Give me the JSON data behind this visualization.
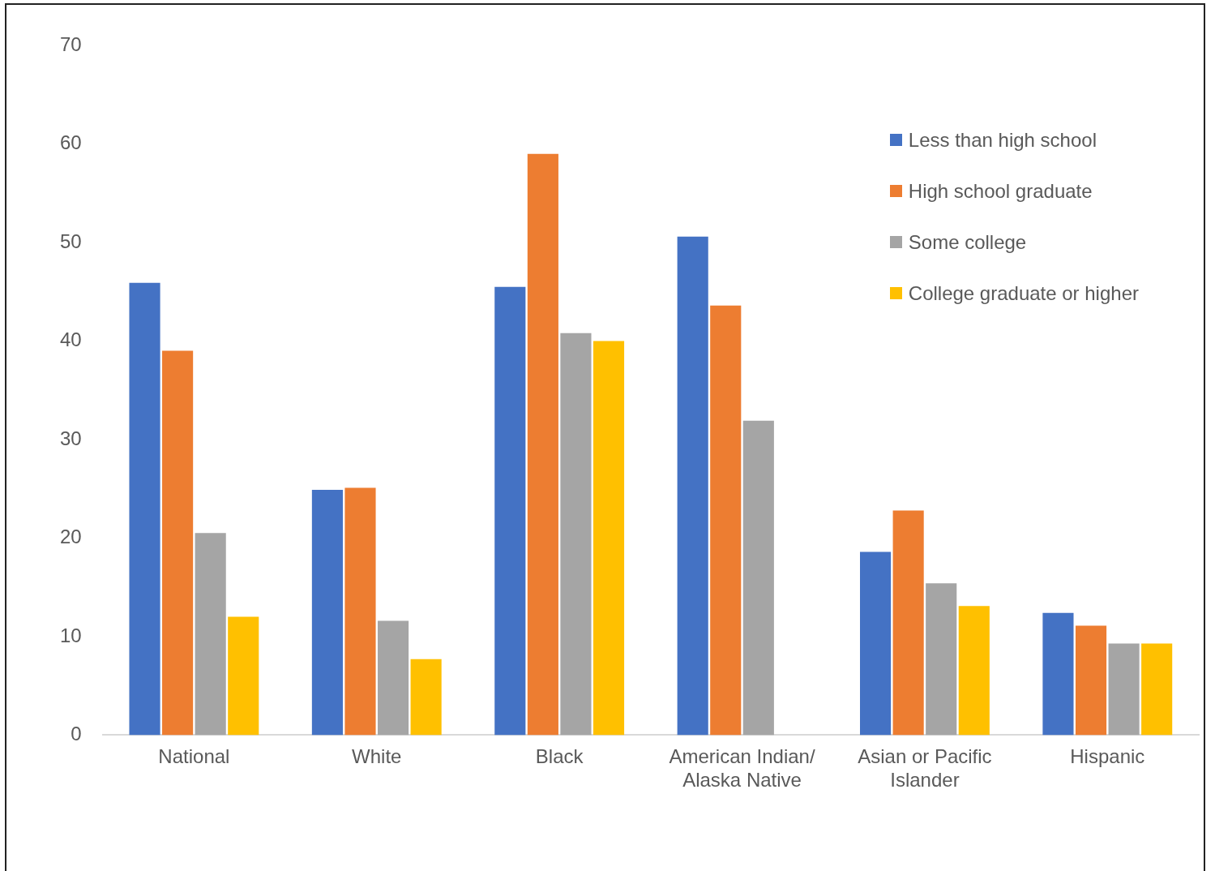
{
  "chart_data": {
    "type": "bar",
    "categories": [
      "National",
      "White",
      "Black",
      "American Indian/ Alaska Native",
      "Asian or Pacific Islander",
      "Hispanic"
    ],
    "series": [
      {
        "name": "Less than high school",
        "color": "#4472c4",
        "values": [
          45.9,
          24.9,
          45.5,
          50.6,
          18.6,
          12.4
        ]
      },
      {
        "name": "High school graduate",
        "color": "#ed7d31",
        "values": [
          39.0,
          25.1,
          59.0,
          43.6,
          22.8,
          11.1
        ]
      },
      {
        "name": "Some college",
        "color": "#a5a5a5",
        "values": [
          20.5,
          11.6,
          40.8,
          31.9,
          15.4,
          9.3
        ]
      },
      {
        "name": "College graduate or higher",
        "color": "#ffc000",
        "values": [
          12.0,
          7.7,
          40.0,
          null,
          13.1,
          9.3
        ]
      }
    ],
    "ylim": [
      0,
      70
    ],
    "yticks": [
      0,
      10,
      20,
      30,
      40,
      50,
      60,
      70
    ],
    "grid": false,
    "legend": "top right"
  }
}
